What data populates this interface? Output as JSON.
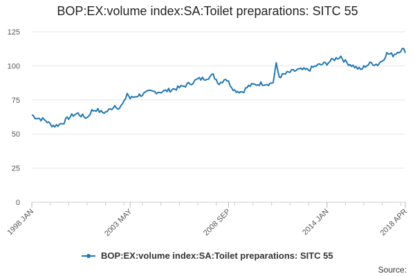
{
  "chart_data": {
    "type": "line",
    "title": "BOP:EX:volume index:SA:Toilet preparations: SITC 55",
    "xlabel": "",
    "ylabel": "",
    "ylim": [
      0,
      125
    ],
    "yticks": [
      0,
      25,
      50,
      75,
      100,
      125
    ],
    "x_ticks": [
      "1998 JAN",
      "2003 MAY",
      "2008 SEP",
      "2014 JAN",
      "2018 APR"
    ],
    "x_range": [
      "1998-01",
      "2018-04"
    ],
    "series": [
      {
        "name": "BOP:EX:volume index:SA:Toilet preparations: SITC 55",
        "color": "#1f77b4",
        "points": [
          [
            "1998-01",
            64
          ],
          [
            "1998-04",
            62
          ],
          [
            "1998-07",
            61
          ],
          [
            "1998-10",
            60
          ],
          [
            "1999-01",
            57
          ],
          [
            "1999-04",
            56
          ],
          [
            "1999-07",
            57
          ],
          [
            "1999-10",
            59
          ],
          [
            "2000-01",
            62
          ],
          [
            "2000-04",
            64
          ],
          [
            "2000-07",
            65
          ],
          [
            "2000-10",
            63
          ],
          [
            "2001-01",
            62
          ],
          [
            "2001-04",
            67
          ],
          [
            "2001-07",
            68
          ],
          [
            "2001-10",
            66
          ],
          [
            "2002-01",
            66
          ],
          [
            "2002-04",
            68
          ],
          [
            "2002-07",
            71
          ],
          [
            "2002-10",
            69
          ],
          [
            "2003-01",
            73
          ],
          [
            "2003-03",
            80
          ],
          [
            "2003-05",
            76
          ],
          [
            "2003-09",
            78
          ],
          [
            "2004-01",
            79
          ],
          [
            "2004-06",
            81
          ],
          [
            "2005-01",
            81
          ],
          [
            "2005-06",
            82
          ],
          [
            "2006-01",
            84
          ],
          [
            "2006-06",
            86
          ],
          [
            "2007-01",
            90
          ],
          [
            "2007-06",
            91
          ],
          [
            "2007-11",
            93
          ],
          [
            "2008-03",
            87
          ],
          [
            "2008-07",
            91
          ],
          [
            "2008-09",
            88
          ],
          [
            "2009-01",
            82
          ],
          [
            "2009-06",
            81
          ],
          [
            "2009-10",
            85
          ],
          [
            "2010-01",
            86
          ],
          [
            "2010-06",
            87
          ],
          [
            "2010-12",
            87
          ],
          [
            "2011-02",
            88
          ],
          [
            "2011-04",
            101
          ],
          [
            "2011-06",
            92
          ],
          [
            "2011-12",
            95
          ],
          [
            "2012-06",
            97
          ],
          [
            "2013-01",
            97
          ],
          [
            "2013-06",
            100
          ],
          [
            "2014-01",
            102
          ],
          [
            "2014-06",
            105
          ],
          [
            "2014-10",
            107
          ],
          [
            "2015-01",
            103
          ],
          [
            "2015-06",
            100
          ],
          [
            "2015-11",
            97
          ],
          [
            "2016-02",
            100
          ],
          [
            "2016-06",
            102
          ],
          [
            "2016-10",
            101
          ],
          [
            "2017-01",
            104
          ],
          [
            "2017-04",
            109
          ],
          [
            "2017-08",
            108
          ],
          [
            "2017-12",
            111
          ],
          [
            "2018-02",
            112
          ],
          [
            "2018-04",
            111
          ]
        ]
      }
    ]
  },
  "legend": {
    "label": "BOP:EX:volume index:SA:Toilet preparations: SITC 55"
  },
  "source_label": "Source:"
}
